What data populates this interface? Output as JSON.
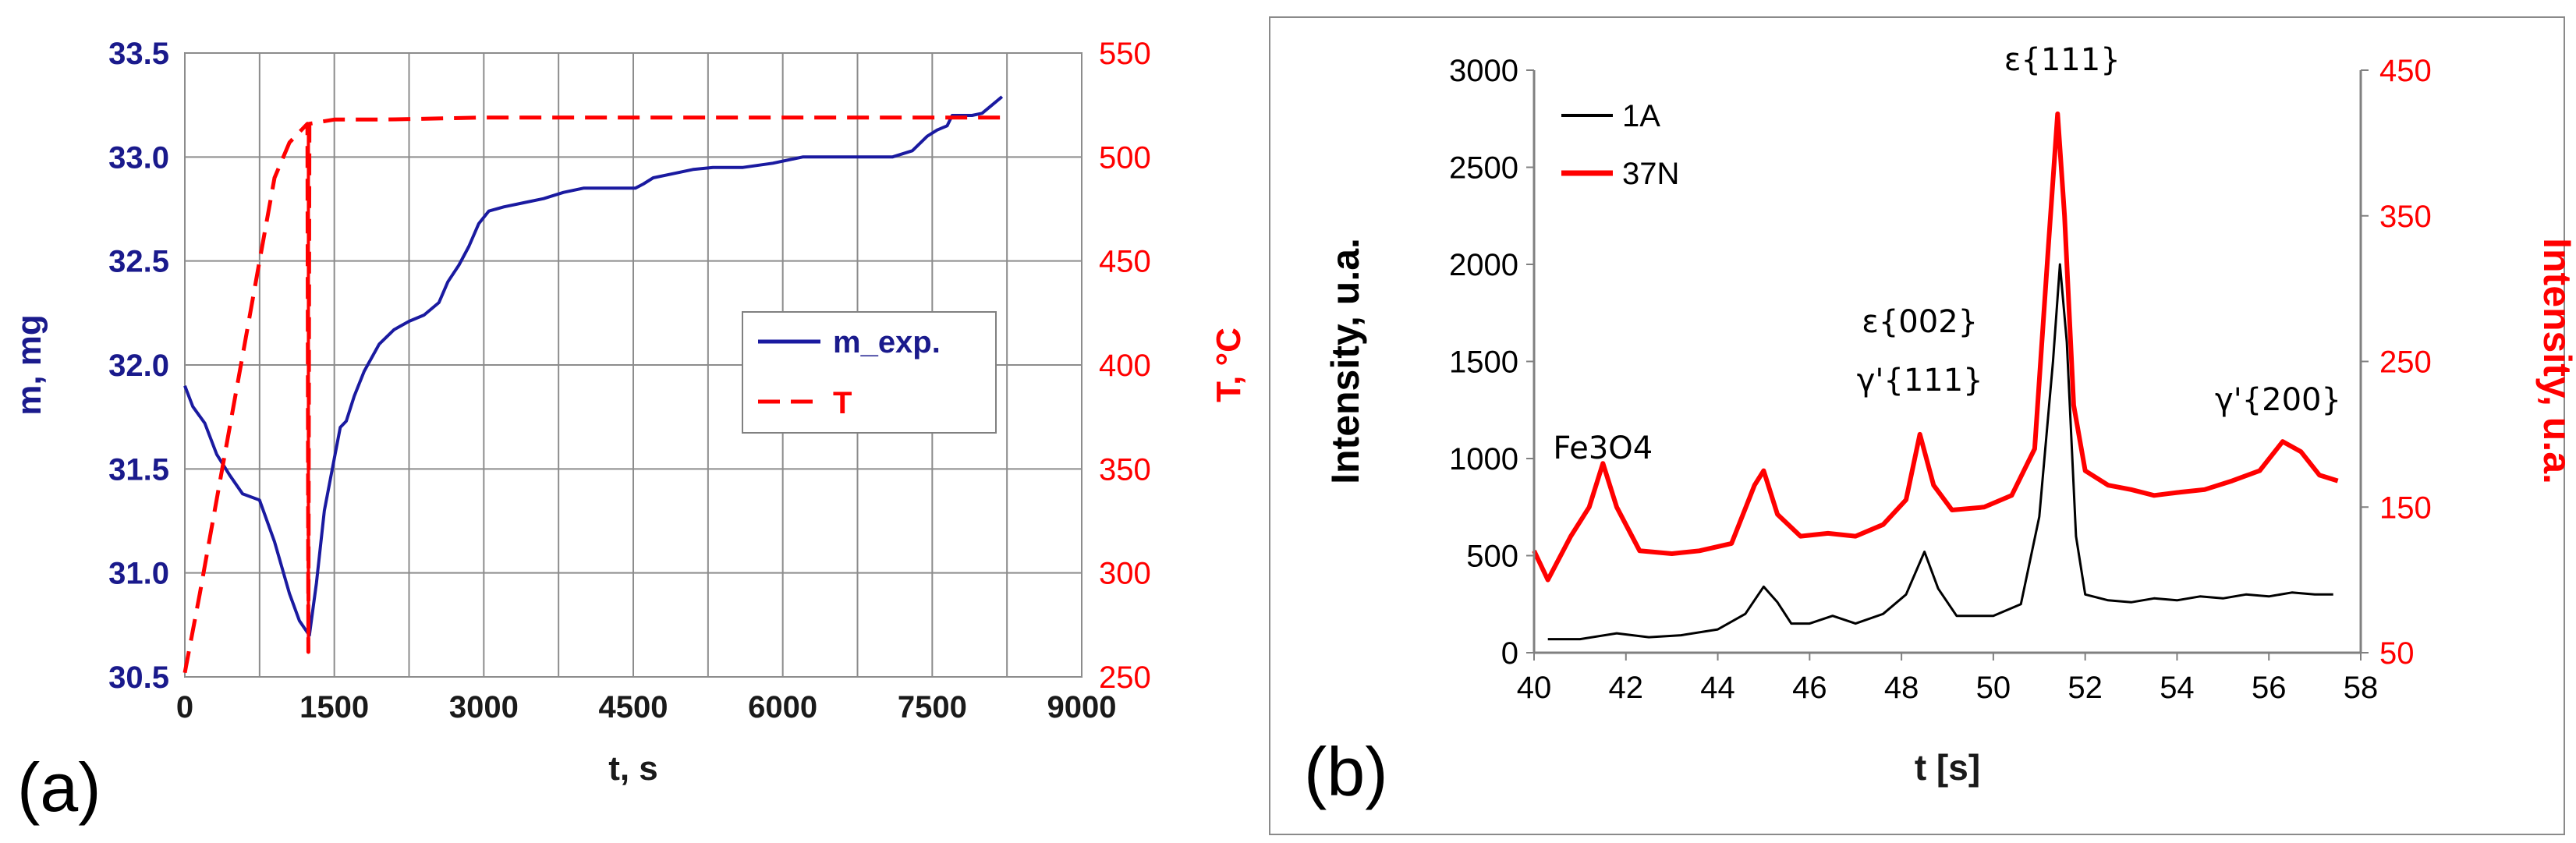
{
  "chart_data": [
    {
      "panel_label": "(a)",
      "type": "line",
      "xlabel": "t, s",
      "ylabel": "m, mg",
      "y2label": "T, °C",
      "xlim": [
        0,
        9000
      ],
      "ylim": [
        30.5,
        33.5
      ],
      "y2lim": [
        250,
        550
      ],
      "xticks": [
        0,
        1500,
        3000,
        4500,
        6000,
        7500,
        9000
      ],
      "yticks": [
        "30.5",
        "31.0",
        "31.5",
        "32.0",
        "32.5",
        "33.0",
        "33.5"
      ],
      "y2ticks": [
        250,
        300,
        350,
        400,
        450,
        500,
        550
      ],
      "grid": true,
      "legend_position": "center-right",
      "series": [
        {
          "name": "m_exp.",
          "axis": "left",
          "color": "#1a1aa0",
          "style": "solid",
          "points": [
            [
              0,
              31.9
            ],
            [
              80,
              31.8
            ],
            [
              200,
              31.72
            ],
            [
              320,
              31.57
            ],
            [
              450,
              31.47
            ],
            [
              580,
              31.38
            ],
            [
              750,
              31.35
            ],
            [
              900,
              31.15
            ],
            [
              1050,
              30.9
            ],
            [
              1150,
              30.77
            ],
            [
              1250,
              30.7
            ],
            [
              1320,
              30.95
            ],
            [
              1400,
              31.3
            ],
            [
              1480,
              31.5
            ],
            [
              1560,
              31.7
            ],
            [
              1620,
              31.73
            ],
            [
              1700,
              31.85
            ],
            [
              1800,
              31.97
            ],
            [
              1950,
              32.1
            ],
            [
              2100,
              32.17
            ],
            [
              2250,
              32.21
            ],
            [
              2400,
              32.24
            ],
            [
              2550,
              32.3
            ],
            [
              2640,
              32.4
            ],
            [
              2750,
              32.48
            ],
            [
              2850,
              32.57
            ],
            [
              2950,
              32.68
            ],
            [
              3050,
              32.74
            ],
            [
              3200,
              32.76
            ],
            [
              3400,
              32.78
            ],
            [
              3600,
              32.8
            ],
            [
              3800,
              32.83
            ],
            [
              4000,
              32.85
            ],
            [
              4250,
              32.85
            ],
            [
              4520,
              32.85
            ],
            [
              4600,
              32.87
            ],
            [
              4700,
              32.9
            ],
            [
              4900,
              32.92
            ],
            [
              5100,
              32.94
            ],
            [
              5300,
              32.95
            ],
            [
              5600,
              32.95
            ],
            [
              5900,
              32.97
            ],
            [
              6200,
              33.0
            ],
            [
              6500,
              33.0
            ],
            [
              6800,
              33.0
            ],
            [
              7100,
              33.0
            ],
            [
              7300,
              33.03
            ],
            [
              7450,
              33.1
            ],
            [
              7550,
              33.13
            ],
            [
              7650,
              33.15
            ],
            [
              7700,
              33.2
            ],
            [
              7800,
              33.2
            ],
            [
              7900,
              33.2
            ],
            [
              8000,
              33.21
            ],
            [
              8100,
              33.25
            ],
            [
              8200,
              33.29
            ]
          ]
        },
        {
          "name": "T",
          "axis": "right",
          "color": "#ff0000",
          "style": "dashed",
          "points": [
            [
              0,
              252
            ],
            [
              150,
              290
            ],
            [
              300,
              330
            ],
            [
              450,
              370
            ],
            [
              600,
              410
            ],
            [
              750,
              450
            ],
            [
              900,
              490
            ],
            [
              1050,
              507
            ],
            [
              1230,
              516
            ],
            [
              1240,
              262
            ],
            [
              1250,
              516
            ],
            [
              1500,
              518
            ],
            [
              2000,
              518
            ],
            [
              3000,
              519
            ],
            [
              4000,
              519
            ],
            [
              5000,
              519
            ],
            [
              6000,
              519
            ],
            [
              7000,
              519
            ],
            [
              8200,
              519
            ]
          ]
        }
      ]
    },
    {
      "panel_label": "(b)",
      "type": "line",
      "xlabel": "t [s]",
      "ylabel": "Intensity, u.a.",
      "y2label": "Intensity, u.a.",
      "xlim": [
        40,
        58
      ],
      "ylim": [
        0,
        3000
      ],
      "y2lim": [
        50,
        450
      ],
      "xticks": [
        40,
        42,
        44,
        46,
        48,
        50,
        52,
        54,
        56,
        58
      ],
      "yticks": [
        0,
        500,
        1000,
        1500,
        2000,
        2500,
        3000
      ],
      "y2ticks": [
        50,
        150,
        250,
        350,
        450
      ],
      "grid": false,
      "legend_position": "top-left",
      "annotations": [
        {
          "text": "Fe3O4",
          "x": 41.5,
          "y": 1000
        },
        {
          "text": "ε{002}",
          "x": 48.4,
          "y": 1650
        },
        {
          "text": "γ'{111}",
          "x": 48.4,
          "y": 1350
        },
        {
          "text": "ε{111}",
          "x": 51.5,
          "y": 3000
        },
        {
          "text": "γ'{200}",
          "x": 56.2,
          "y": 1250
        }
      ],
      "series": [
        {
          "name": "1A",
          "axis": "left",
          "color": "#000000",
          "points": [
            [
              40.3,
              70
            ],
            [
              41,
              70
            ],
            [
              41.8,
              100
            ],
            [
              42.5,
              80
            ],
            [
              43.2,
              90
            ],
            [
              44,
              120
            ],
            [
              44.6,
              200
            ],
            [
              45,
              340
            ],
            [
              45.3,
              260
            ],
            [
              45.6,
              150
            ],
            [
              46,
              150
            ],
            [
              46.5,
              190
            ],
            [
              47,
              150
            ],
            [
              47.6,
              200
            ],
            [
              48.1,
              300
            ],
            [
              48.5,
              520
            ],
            [
              48.8,
              330
            ],
            [
              49.2,
              190
            ],
            [
              50,
              190
            ],
            [
              50.6,
              250
            ],
            [
              51,
              700
            ],
            [
              51.3,
              1500
            ],
            [
              51.45,
              2000
            ],
            [
              51.6,
              1600
            ],
            [
              51.8,
              600
            ],
            [
              52,
              300
            ],
            [
              52.5,
              270
            ],
            [
              53,
              260
            ],
            [
              53.5,
              280
            ],
            [
              54,
              270
            ],
            [
              54.5,
              290
            ],
            [
              55,
              280
            ],
            [
              55.5,
              300
            ],
            [
              56,
              290
            ],
            [
              56.5,
              310
            ],
            [
              57,
              300
            ],
            [
              57.4,
              300
            ]
          ]
        },
        {
          "name": "37N",
          "axis": "right",
          "color": "#ff0000",
          "points": [
            [
              40,
              120
            ],
            [
              40.3,
              100
            ],
            [
              40.8,
              130
            ],
            [
              41.2,
              150
            ],
            [
              41.5,
              180
            ],
            [
              41.8,
              150
            ],
            [
              42.3,
              120
            ],
            [
              43,
              118
            ],
            [
              43.6,
              120
            ],
            [
              44.3,
              125
            ],
            [
              44.8,
              165
            ],
            [
              45,
              175
            ],
            [
              45.3,
              145
            ],
            [
              45.8,
              130
            ],
            [
              46.4,
              132
            ],
            [
              47,
              130
            ],
            [
              47.6,
              138
            ],
            [
              48.1,
              155
            ],
            [
              48.4,
              200
            ],
            [
              48.7,
              165
            ],
            [
              49.1,
              148
            ],
            [
              49.8,
              150
            ],
            [
              50.4,
              158
            ],
            [
              50.9,
              190
            ],
            [
              51.2,
              330
            ],
            [
              51.4,
              420
            ],
            [
              51.55,
              350
            ],
            [
              51.75,
              220
            ],
            [
              52,
              175
            ],
            [
              52.5,
              165
            ],
            [
              53,
              162
            ],
            [
              53.5,
              158
            ],
            [
              54,
              160
            ],
            [
              54.6,
              162
            ],
            [
              55.2,
              168
            ],
            [
              55.8,
              175
            ],
            [
              56.3,
              195
            ],
            [
              56.7,
              188
            ],
            [
              57.1,
              172
            ],
            [
              57.5,
              168
            ]
          ]
        }
      ]
    }
  ]
}
